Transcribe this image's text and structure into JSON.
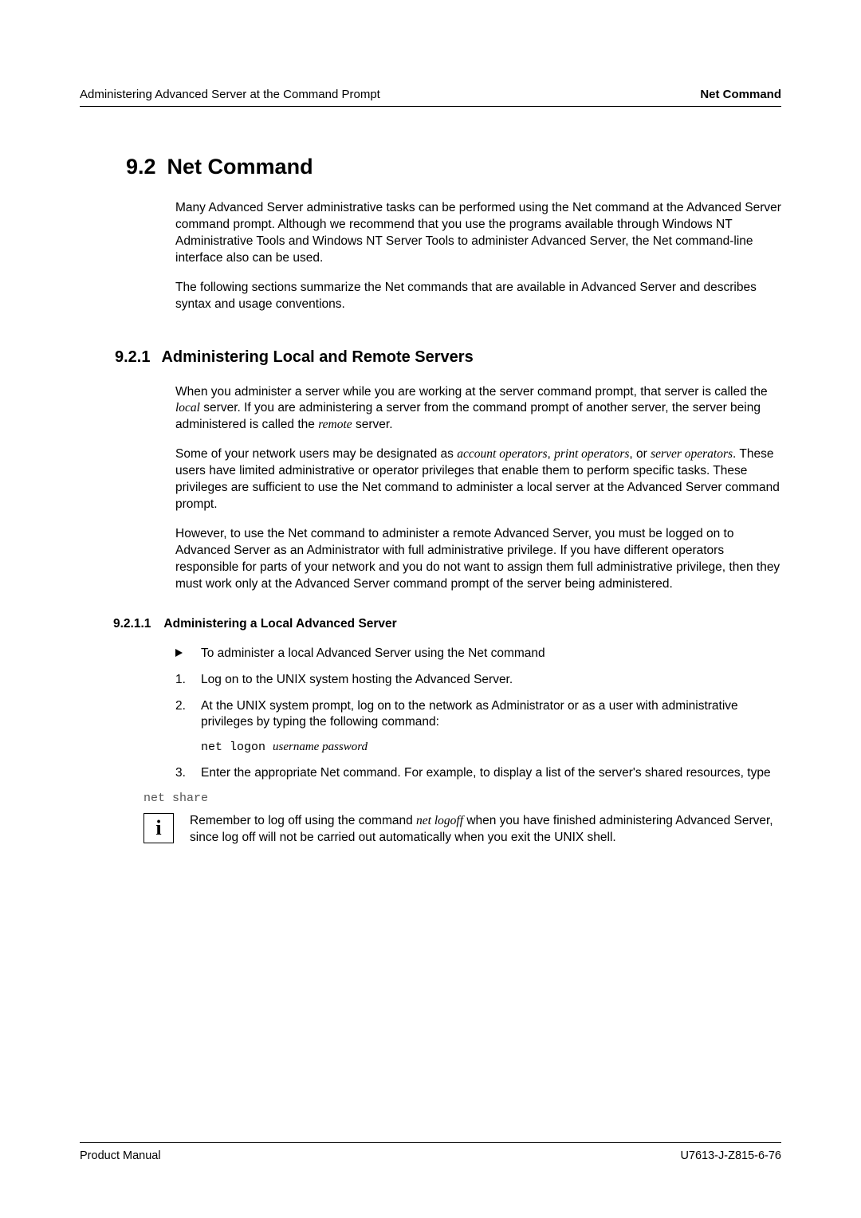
{
  "header": {
    "left": "Administering Advanced Server at the Command Prompt",
    "right": "Net Command"
  },
  "section": {
    "number": "9.2",
    "title": "Net Command",
    "para1": "Many Advanced Server administrative tasks can be performed using the Net command at the Advanced Server command prompt. Although we recommend that you use the programs available through Windows NT Administrative Tools and Windows NT Server Tools to administer Advanced Server, the Net command-line interface also can be used.",
    "para2": "The following sections summarize the Net commands that are available in Advanced Server and describes syntax and usage conventions."
  },
  "subsection": {
    "number": "9.2.1",
    "title": "Administering Local and Remote Servers",
    "para1_a": "When you administer a server while you are working at the server command prompt, that server is called the ",
    "para1_local": "local",
    "para1_b": " server. If you are administering a server from the command prompt of another server, the server being administered is called the ",
    "para1_remote": "remote",
    "para1_c": " server.",
    "para2_a": "Some of your network users may be designated as ",
    "para2_acct": "account operators",
    "para2_b": ", ",
    "para2_print": "print operators",
    "para2_c": ", or ",
    "para2_srv": "server operators",
    "para2_d": ". These users have limited administrative or operator privileges that enable them to perform specific tasks. These privileges are sufficient to use the Net command to administer a local server at the Advanced Server command prompt.",
    "para3": "However, to use the Net command to administer a remote Advanced Server, you must be logged on to Advanced Server as an Administrator with full administrative privilege. If you have different operators responsible for parts of your network and you do not want to assign them full administrative privilege, then they must work only at the Advanced Server command prompt of the server being administered."
  },
  "subsub": {
    "number": "9.2.1.1",
    "title": "Administering a Local Advanced Server",
    "bullet": "To administer a local Advanced Server using the Net command",
    "step1_num": "1.",
    "step1": "Log on to the UNIX system hosting the Advanced Server.",
    "step2_num": "2.",
    "step2": "At the UNIX system prompt, log on to the network as Administrator or as a user with administrative privileges by typing the following command:",
    "cmd1_a": "net logon ",
    "cmd1_b": "username password",
    "step3_num": "3.",
    "step3": "Enter the appropriate Net command.  For example, to display a list of the server's shared resources, type",
    "cmd2": "net share",
    "info_a": "Remember to log off using the command ",
    "info_logoff": "net logoff",
    "info_b": " when you have finished administering Advanced Server, since log off will not be carried out automatically when you exit the UNIX shell.",
    "info_icon": "i"
  },
  "footer": {
    "left": "Product Manual",
    "right": "U7613-J-Z815-6-76"
  }
}
